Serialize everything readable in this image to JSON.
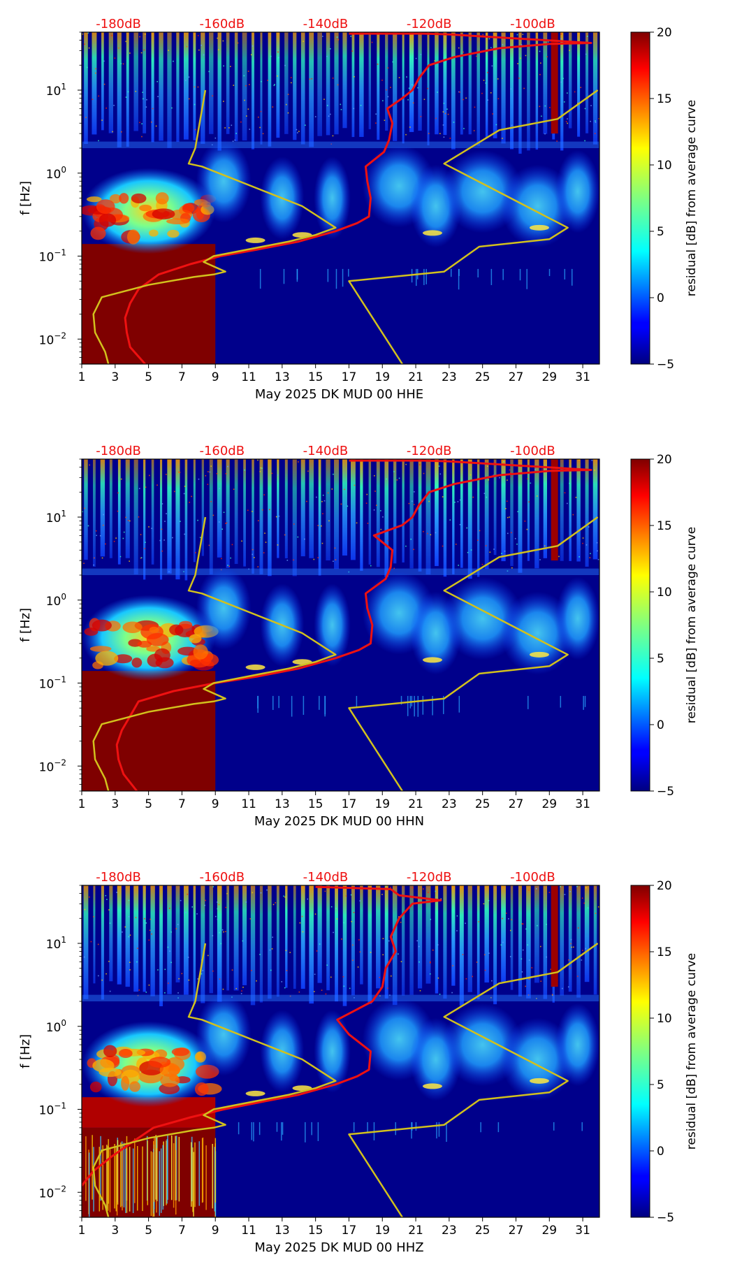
{
  "figure": {
    "title": ""
  },
  "chart_data": [
    {
      "type": "heatmap",
      "xlabel": "May 2025 DK MUD 00 HHE",
      "ylabel": "f [Hz]",
      "x_range": [
        1,
        32
      ],
      "y_range_hz": [
        0.005,
        50
      ],
      "x_ticks": [
        "1",
        "3",
        "5",
        "7",
        "9",
        "11",
        "13",
        "15",
        "17",
        "19",
        "21",
        "23",
        "25",
        "27",
        "29",
        "31"
      ],
      "y_ticks": [
        {
          "label": "10",
          "exp": "1",
          "value": 10
        },
        {
          "label": "10",
          "exp": "0",
          "value": 1
        },
        {
          "label": "10",
          "exp": "-1",
          "value": 0.1
        },
        {
          "label": "10",
          "exp": "-2",
          "value": 0.01
        }
      ],
      "top_labels": [
        "-180dB",
        "-160dB",
        "-140dB",
        "-120dB",
        "-100dB"
      ],
      "colorbar": {
        "label": "residual [dB] from average curve",
        "min": -5,
        "max": 20,
        "ticks": [
          "20",
          "15",
          "10",
          "5",
          "0",
          "−5"
        ]
      },
      "series": [
        {
          "name": "average PSD curve (red)",
          "color": "#ee1111",
          "points": [
            [
              4.8,
              0.005
            ],
            [
              3.9,
              0.008
            ],
            [
              3.7,
              0.012
            ],
            [
              3.6,
              0.018
            ],
            [
              3.9,
              0.027
            ],
            [
              4.4,
              0.04
            ],
            [
              5.6,
              0.06
            ],
            [
              7.5,
              0.08
            ],
            [
              9.3,
              0.1
            ],
            [
              11.5,
              0.12
            ],
            [
              14,
              0.15
            ],
            [
              16.2,
              0.2
            ],
            [
              17.5,
              0.25
            ],
            [
              18.2,
              0.3
            ],
            [
              18.3,
              0.5
            ],
            [
              18.1,
              0.8
            ],
            [
              18,
              1.2
            ],
            [
              19.1,
              1.8
            ],
            [
              19.4,
              2.5
            ],
            [
              19.6,
              4
            ],
            [
              19.3,
              6
            ],
            [
              20.2,
              8
            ],
            [
              20.8,
              10
            ],
            [
              21.2,
              14
            ],
            [
              21.8,
              20
            ],
            [
              23.3,
              25
            ],
            [
              26,
              32
            ],
            [
              29,
              36
            ],
            [
              31.5,
              37
            ],
            [
              23,
              47
            ],
            [
              21.5,
              48
            ],
            [
              17,
              48
            ]
          ]
        },
        {
          "name": "noise model curve (yellow)",
          "color": "#d2c11d",
          "points": [
            [
              2.6,
              0.005
            ],
            [
              2.4,
              0.007
            ],
            [
              1.8,
              0.012
            ],
            [
              1.7,
              0.02
            ],
            [
              2.2,
              0.032
            ],
            [
              5,
              0.045
            ],
            [
              7.7,
              0.056
            ],
            [
              8.9,
              0.06
            ],
            [
              9.6,
              0.065
            ],
            [
              8.3,
              0.085
            ],
            [
              8.9,
              0.1
            ],
            [
              13.4,
              0.15
            ],
            [
              15,
              0.18
            ],
            [
              16.2,
              0.22
            ],
            [
              14.2,
              0.4
            ],
            [
              8.2,
              1.2
            ],
            [
              7.4,
              1.3
            ],
            [
              7.8,
              2
            ],
            [
              8.4,
              10
            ],
            null,
            [
              20.2,
              0.005
            ],
            [
              17,
              0.05
            ],
            [
              22.7,
              0.065
            ],
            [
              24.8,
              0.13
            ],
            [
              29,
              0.16
            ],
            [
              30.1,
              0.22
            ],
            [
              28.8,
              0.3
            ],
            [
              22.7,
              1.3
            ],
            [
              26,
              3.3
            ],
            [
              29.5,
              4.5
            ],
            [
              31.9,
              10
            ]
          ]
        }
      ]
    },
    {
      "type": "heatmap",
      "xlabel": "May 2025 DK MUD 00 HHN",
      "ylabel": "f [Hz]",
      "x_range": [
        1,
        32
      ],
      "y_range_hz": [
        0.005,
        50
      ],
      "x_ticks": [
        "1",
        "3",
        "5",
        "7",
        "9",
        "11",
        "13",
        "15",
        "17",
        "19",
        "21",
        "23",
        "25",
        "27",
        "29",
        "31"
      ],
      "y_ticks": [
        {
          "label": "10",
          "exp": "1",
          "value": 10
        },
        {
          "label": "10",
          "exp": "0",
          "value": 1
        },
        {
          "label": "10",
          "exp": "-1",
          "value": 0.1
        },
        {
          "label": "10",
          "exp": "-2",
          "value": 0.01
        }
      ],
      "top_labels": [
        "-180dB",
        "-160dB",
        "-140dB",
        "-120dB",
        "-100dB"
      ],
      "colorbar": {
        "label": "residual [dB] from average curve",
        "min": -5,
        "max": 20,
        "ticks": [
          "20",
          "15",
          "10",
          "5",
          "0",
          "−5"
        ]
      },
      "series": [
        {
          "name": "average PSD curve (red)",
          "color": "#ee1111",
          "points": [
            [
              4.3,
              0.005
            ],
            [
              3.5,
              0.008
            ],
            [
              3.2,
              0.012
            ],
            [
              3.1,
              0.018
            ],
            [
              3.4,
              0.027
            ],
            [
              3.9,
              0.04
            ],
            [
              4.4,
              0.06
            ],
            [
              6.5,
              0.08
            ],
            [
              9,
              0.1
            ],
            [
              11.5,
              0.12
            ],
            [
              14,
              0.15
            ],
            [
              16.2,
              0.2
            ],
            [
              17.6,
              0.25
            ],
            [
              18.3,
              0.3
            ],
            [
              18.4,
              0.5
            ],
            [
              18.1,
              0.8
            ],
            [
              18,
              1.2
            ],
            [
              19.2,
              1.8
            ],
            [
              19.5,
              2.5
            ],
            [
              19.6,
              4
            ],
            [
              18.5,
              6
            ],
            [
              20.2,
              8
            ],
            [
              20.8,
              10
            ],
            [
              21.2,
              14
            ],
            [
              21.8,
              20
            ],
            [
              23.3,
              25
            ],
            [
              26,
              32
            ],
            [
              29,
              36
            ],
            [
              31.5,
              37
            ],
            [
              23,
              47
            ],
            [
              21.5,
              48
            ],
            [
              17,
              48
            ]
          ]
        },
        {
          "name": "noise model curve (yellow)",
          "color": "#d2c11d",
          "points": [
            [
              2.6,
              0.005
            ],
            [
              2.4,
              0.007
            ],
            [
              1.8,
              0.012
            ],
            [
              1.7,
              0.02
            ],
            [
              2.2,
              0.032
            ],
            [
              5,
              0.045
            ],
            [
              7.7,
              0.056
            ],
            [
              8.9,
              0.06
            ],
            [
              9.6,
              0.065
            ],
            [
              8.3,
              0.085
            ],
            [
              8.9,
              0.1
            ],
            [
              13.4,
              0.15
            ],
            [
              15,
              0.18
            ],
            [
              16.2,
              0.22
            ],
            [
              14.2,
              0.4
            ],
            [
              8.2,
              1.2
            ],
            [
              7.4,
              1.3
            ],
            [
              7.8,
              2
            ],
            [
              8.4,
              10
            ],
            null,
            [
              20.2,
              0.005
            ],
            [
              17,
              0.05
            ],
            [
              22.7,
              0.065
            ],
            [
              24.8,
              0.13
            ],
            [
              29,
              0.16
            ],
            [
              30.1,
              0.22
            ],
            [
              28.8,
              0.3
            ],
            [
              22.7,
              1.3
            ],
            [
              26,
              3.3
            ],
            [
              29.5,
              4.5
            ],
            [
              31.9,
              10
            ]
          ]
        }
      ]
    },
    {
      "type": "heatmap",
      "xlabel": "May 2025 DK MUD 00 HHZ",
      "ylabel": "f [Hz]",
      "x_range": [
        1,
        32
      ],
      "y_range_hz": [
        0.005,
        50
      ],
      "x_ticks": [
        "1",
        "3",
        "5",
        "7",
        "9",
        "11",
        "13",
        "15",
        "17",
        "19",
        "21",
        "23",
        "25",
        "27",
        "29",
        "31"
      ],
      "y_ticks": [
        {
          "label": "10",
          "exp": "1",
          "value": 10
        },
        {
          "label": "10",
          "exp": "0",
          "value": 1
        },
        {
          "label": "10",
          "exp": "-1",
          "value": 0.1
        },
        {
          "label": "10",
          "exp": "-2",
          "value": 0.01
        }
      ],
      "top_labels": [
        "-180dB",
        "-160dB",
        "-140dB",
        "-120dB",
        "-100dB"
      ],
      "colorbar": {
        "label": "residual [dB] from average curve",
        "min": -5,
        "max": 20,
        "ticks": [
          "20",
          "15",
          "10",
          "5",
          "0",
          "−5"
        ]
      },
      "series": [
        {
          "name": "average PSD curve (red)",
          "color": "#ee1111",
          "points": [
            [
              1,
              0.012
            ],
            [
              1.7,
              0.018
            ],
            [
              2.8,
              0.027
            ],
            [
              4,
              0.04
            ],
            [
              5.3,
              0.06
            ],
            [
              7.5,
              0.08
            ],
            [
              9.5,
              0.1
            ],
            [
              11.5,
              0.12
            ],
            [
              14,
              0.15
            ],
            [
              16.2,
              0.2
            ],
            [
              17.5,
              0.25
            ],
            [
              18.2,
              0.3
            ],
            [
              18.3,
              0.5
            ],
            [
              17,
              0.8
            ],
            [
              16.3,
              1.2
            ],
            [
              18.4,
              2
            ],
            [
              19,
              3
            ],
            [
              19.2,
              5
            ],
            [
              19.8,
              8
            ],
            [
              19.5,
              12
            ],
            [
              20,
              20
            ],
            [
              20.8,
              30
            ],
            [
              22.5,
              33
            ],
            [
              20,
              38
            ],
            [
              19.5,
              45
            ],
            [
              15,
              48
            ]
          ]
        },
        {
          "name": "noise model curve (yellow)",
          "color": "#d2c11d",
          "points": [
            [
              2.6,
              0.005
            ],
            [
              2.4,
              0.007
            ],
            [
              1.8,
              0.012
            ],
            [
              1.7,
              0.02
            ],
            [
              2.2,
              0.032
            ],
            [
              5,
              0.045
            ],
            [
              7.7,
              0.056
            ],
            [
              8.9,
              0.06
            ],
            [
              9.6,
              0.065
            ],
            [
              8.3,
              0.085
            ],
            [
              8.9,
              0.1
            ],
            [
              13.4,
              0.15
            ],
            [
              15,
              0.18
            ],
            [
              16.2,
              0.22
            ],
            [
              14.2,
              0.4
            ],
            [
              8.2,
              1.2
            ],
            [
              7.4,
              1.3
            ],
            [
              7.8,
              2
            ],
            [
              8.4,
              10
            ],
            null,
            [
              20.2,
              0.005
            ],
            [
              17,
              0.05
            ],
            [
              22.7,
              0.065
            ],
            [
              24.8,
              0.13
            ],
            [
              29,
              0.16
            ],
            [
              30.1,
              0.22
            ],
            [
              28.8,
              0.3
            ],
            [
              22.7,
              1.3
            ],
            [
              26,
              3.3
            ],
            [
              29.5,
              4.5
            ],
            [
              31.9,
              10
            ]
          ]
        }
      ]
    }
  ],
  "colors": {
    "background_low": "#00008b",
    "top_label": "#ee1111",
    "colormap": [
      "#00007f",
      "#0000ff",
      "#0080ff",
      "#00ffff",
      "#80ff80",
      "#ffff00",
      "#ff8000",
      "#ff0000",
      "#7f0000"
    ]
  }
}
